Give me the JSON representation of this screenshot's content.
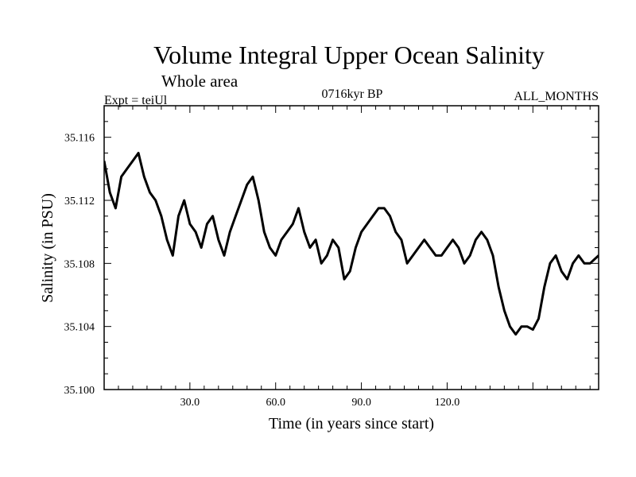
{
  "chart_data": {
    "type": "line",
    "title": "Volume Integral Upper Ocean Salinity",
    "subtitle": "Whole area",
    "experiment": "Expt = teiUl",
    "period": "0716kyr BP",
    "months": "ALL_MONTHS",
    "xlabel": "Time (in years since start)",
    "ylabel": "Salinity (in PSU)",
    "xlim": [
      0,
      173
    ],
    "ylim": [
      35.1,
      35.118
    ],
    "x_ticks": [
      30,
      60,
      90,
      120
    ],
    "x_tick_labels": [
      "30.0",
      "60.0",
      "90.0",
      "120.0"
    ],
    "y_ticks": [
      35.1,
      35.104,
      35.108,
      35.112,
      35.116
    ],
    "y_tick_labels": [
      "35.100",
      "35.104",
      "35.108",
      "35.112",
      "35.116"
    ],
    "series": [
      {
        "name": "Salinity",
        "x": [
          0,
          2,
          4,
          6,
          8,
          10,
          12,
          14,
          16,
          18,
          20,
          22,
          24,
          26,
          28,
          30,
          32,
          34,
          36,
          38,
          40,
          42,
          44,
          46,
          48,
          50,
          52,
          54,
          56,
          58,
          60,
          62,
          64,
          66,
          68,
          70,
          72,
          74,
          76,
          78,
          80,
          82,
          84,
          86,
          88,
          90,
          92,
          94,
          96,
          98,
          100,
          102,
          104,
          106,
          108,
          110,
          112,
          114,
          116,
          118,
          120,
          122,
          124,
          126,
          128,
          130,
          132,
          134,
          136,
          138,
          140,
          142,
          144,
          146,
          148,
          150,
          152,
          154,
          156,
          158,
          160,
          162,
          164,
          166,
          168,
          170,
          173
        ],
        "values": [
          35.1145,
          35.1125,
          35.1115,
          35.1135,
          35.114,
          35.1145,
          35.115,
          35.1135,
          35.1125,
          35.112,
          35.111,
          35.1095,
          35.1085,
          35.111,
          35.112,
          35.1105,
          35.11,
          35.109,
          35.1105,
          35.111,
          35.1095,
          35.1085,
          35.11,
          35.111,
          35.112,
          35.113,
          35.1135,
          35.112,
          35.11,
          35.109,
          35.1085,
          35.1095,
          35.11,
          35.1105,
          35.1115,
          35.11,
          35.109,
          35.1095,
          35.108,
          35.1085,
          35.1095,
          35.109,
          35.107,
          35.1075,
          35.109,
          35.11,
          35.1105,
          35.111,
          35.1115,
          35.1115,
          35.111,
          35.11,
          35.1095,
          35.108,
          35.1085,
          35.109,
          35.1095,
          35.109,
          35.1085,
          35.1085,
          35.109,
          35.1095,
          35.109,
          35.108,
          35.1085,
          35.1095,
          35.11,
          35.1095,
          35.1085,
          35.1065,
          35.105,
          35.104,
          35.1035,
          35.104,
          35.104,
          35.1038,
          35.1045,
          35.1065,
          35.108,
          35.1085,
          35.1075,
          35.107,
          35.108,
          35.1085,
          35.108,
          35.108,
          35.1085
        ]
      }
    ]
  }
}
